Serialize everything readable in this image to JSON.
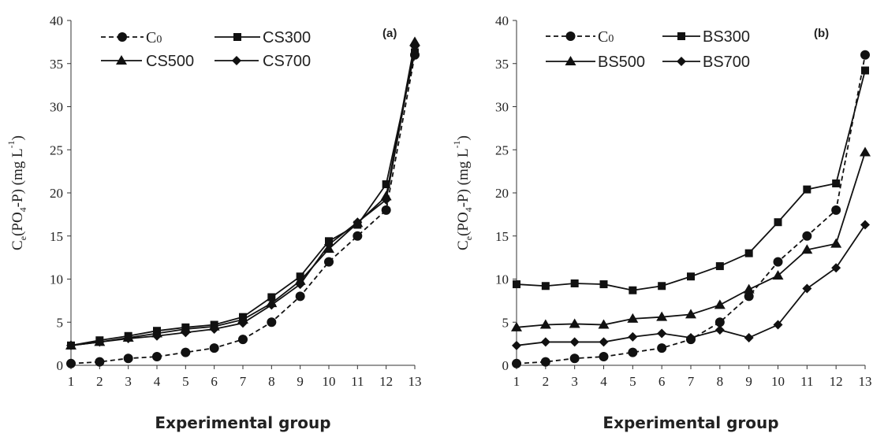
{
  "chart_data": [
    {
      "panel_label": "(a)",
      "type": "line",
      "x": [
        1,
        2,
        3,
        4,
        5,
        6,
        7,
        8,
        9,
        10,
        11,
        12,
        13
      ],
      "xlabel": "Experimental group",
      "ylabel": "Ce(PO4-P) (mg L-1)",
      "ylim": [
        0,
        40
      ],
      "yticks": [
        0,
        5,
        10,
        15,
        20,
        25,
        30,
        35,
        40
      ],
      "grid": false,
      "legend_position": "top",
      "series": [
        {
          "name": "C0",
          "marker": "circle",
          "dashed": true,
          "values": [
            0.2,
            0.4,
            0.8,
            1.0,
            1.5,
            2.0,
            3.0,
            5.0,
            8.0,
            12.0,
            15.0,
            18.0,
            36.0
          ]
        },
        {
          "name": "CS300",
          "marker": "square",
          "dashed": false,
          "values": [
            2.3,
            2.9,
            3.4,
            4.0,
            4.4,
            4.7,
            5.6,
            7.9,
            10.3,
            14.4,
            16.3,
            21.0,
            36.3
          ]
        },
        {
          "name": "CS500",
          "marker": "triangle",
          "dashed": false,
          "values": [
            2.3,
            2.7,
            3.2,
            3.7,
            4.2,
            4.5,
            5.3,
            7.2,
            9.8,
            13.5,
            16.5,
            19.6,
            37.5
          ]
        },
        {
          "name": "CS700",
          "marker": "diamond",
          "dashed": false,
          "values": [
            2.3,
            2.7,
            3.1,
            3.4,
            3.8,
            4.2,
            4.9,
            7.0,
            9.4,
            14.0,
            16.6,
            19.2,
            37.0
          ]
        }
      ]
    },
    {
      "panel_label": "(b)",
      "type": "line",
      "x": [
        1,
        2,
        3,
        4,
        5,
        6,
        7,
        8,
        9,
        10,
        11,
        12,
        13
      ],
      "xlabel": "Experimental group",
      "ylabel": "Ce(PO4-P) (mg L-1)",
      "ylim": [
        0,
        40
      ],
      "yticks": [
        0,
        5,
        10,
        15,
        20,
        25,
        30,
        35,
        40
      ],
      "grid": false,
      "legend_position": "top",
      "series": [
        {
          "name": "C0",
          "marker": "circle",
          "dashed": true,
          "values": [
            0.2,
            0.4,
            0.8,
            1.0,
            1.5,
            2.0,
            3.0,
            5.0,
            8.0,
            12.0,
            15.0,
            18.0,
            36.0
          ]
        },
        {
          "name": "BS300",
          "marker": "square",
          "dashed": false,
          "values": [
            9.4,
            9.2,
            9.5,
            9.4,
            8.7,
            9.2,
            10.3,
            11.5,
            13.0,
            16.6,
            20.4,
            21.1,
            34.2
          ]
        },
        {
          "name": "BS500",
          "marker": "triangle",
          "dashed": false,
          "values": [
            4.4,
            4.7,
            4.8,
            4.7,
            5.4,
            5.6,
            5.9,
            7.0,
            8.8,
            10.4,
            13.4,
            14.1,
            24.7
          ]
        },
        {
          "name": "BS700",
          "marker": "diamond",
          "dashed": false,
          "values": [
            2.3,
            2.7,
            2.7,
            2.7,
            3.3,
            3.7,
            3.2,
            4.1,
            3.2,
            4.7,
            8.9,
            11.3,
            16.3
          ]
        }
      ]
    }
  ]
}
